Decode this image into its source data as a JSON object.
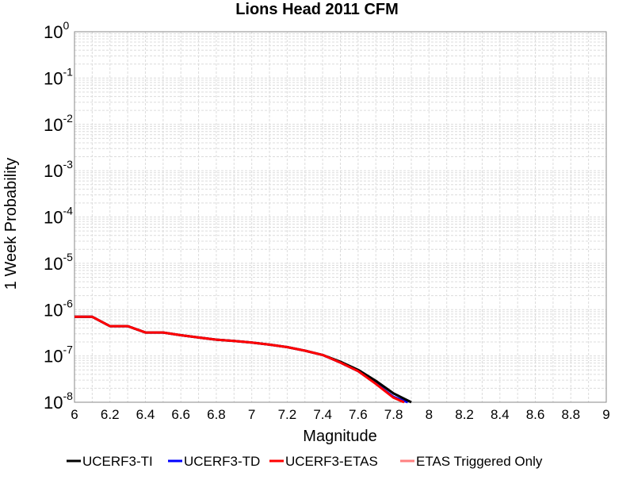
{
  "chart_data": {
    "type": "line",
    "title": "Lions Head 2011 CFM",
    "xlabel": "Magnitude",
    "ylabel": "1 Week Probability",
    "xlim": [
      6,
      9
    ],
    "ylim": [
      1e-08,
      1
    ],
    "yscale": "log",
    "grid": true,
    "legend_position": "bottom",
    "x_ticks": [
      "6",
      "6.2",
      "6.4",
      "6.6",
      "6.8",
      "7",
      "7.2",
      "7.4",
      "7.6",
      "7.8",
      "8",
      "8.2",
      "8.4",
      "8.6",
      "8.8",
      "9"
    ],
    "y_ticks": [
      {
        "base": "10",
        "exp": "0"
      },
      {
        "base": "10",
        "exp": "-1"
      },
      {
        "base": "10",
        "exp": "-2"
      },
      {
        "base": "10",
        "exp": "-3"
      },
      {
        "base": "10",
        "exp": "-4"
      },
      {
        "base": "10",
        "exp": "-5"
      },
      {
        "base": "10",
        "exp": "-6"
      },
      {
        "base": "10",
        "exp": "-7"
      },
      {
        "base": "10",
        "exp": "-8"
      }
    ],
    "series": [
      {
        "name": "UCERF3-TI",
        "color": "#000000",
        "x": [
          6.0,
          6.1,
          6.2,
          6.3,
          6.4,
          6.5,
          6.6,
          6.7,
          6.8,
          6.9,
          7.0,
          7.1,
          7.2,
          7.3,
          7.4,
          7.5,
          7.6,
          7.7,
          7.8,
          7.9
        ],
        "y": [
          7e-07,
          7e-07,
          4.4e-07,
          4.4e-07,
          3.2e-07,
          3.2e-07,
          2.8e-07,
          2.5e-07,
          2.25e-07,
          2.1e-07,
          1.95e-07,
          1.75e-07,
          1.55e-07,
          1.3e-07,
          1.05e-07,
          7.5e-08,
          5e-08,
          2.9e-08,
          1.55e-08,
          8e-09
        ]
      },
      {
        "name": "UCERF3-TD",
        "color": "#0000ff",
        "x": [
          6.0,
          6.1,
          6.2,
          6.3,
          6.4,
          6.5,
          6.6,
          6.7,
          6.8,
          6.9,
          7.0,
          7.1,
          7.2,
          7.3,
          7.4,
          7.5,
          7.6,
          7.7,
          7.8,
          7.88
        ],
        "y": [
          7e-07,
          7e-07,
          4.4e-07,
          4.4e-07,
          3.2e-07,
          3.2e-07,
          2.8e-07,
          2.5e-07,
          2.25e-07,
          2.1e-07,
          1.95e-07,
          1.75e-07,
          1.55e-07,
          1.3e-07,
          1.05e-07,
          7.2e-08,
          4.7e-08,
          2.55e-08,
          1.3e-08,
          8e-09
        ]
      },
      {
        "name": "UCERF3-ETAS",
        "color": "#ff0000",
        "x": [
          6.0,
          6.1,
          6.2,
          6.3,
          6.4,
          6.5,
          6.6,
          6.7,
          6.8,
          6.9,
          7.0,
          7.1,
          7.2,
          7.3,
          7.4,
          7.5,
          7.6,
          7.7,
          7.8,
          7.86
        ],
        "y": [
          7e-07,
          7e-07,
          4.4e-07,
          4.4e-07,
          3.2e-07,
          3.2e-07,
          2.8e-07,
          2.5e-07,
          2.25e-07,
          2.1e-07,
          1.95e-07,
          1.75e-07,
          1.55e-07,
          1.3e-07,
          1.05e-07,
          7.2e-08,
          4.7e-08,
          2.5e-08,
          1.25e-08,
          8e-09
        ]
      },
      {
        "name": "ETAS Triggered Only",
        "color": "#ff8080",
        "x": [],
        "y": []
      }
    ]
  }
}
